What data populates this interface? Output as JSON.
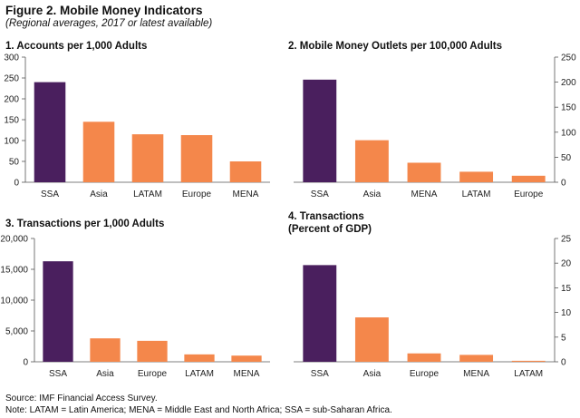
{
  "figure": {
    "title": "Figure 2. Mobile Money Indicators",
    "subtitle": "(Regional averages, 2017 or latest available)"
  },
  "colors": {
    "highlight": "#4a1f5e",
    "bar": "#f4874b",
    "axis": "#555555"
  },
  "chart_data": [
    {
      "type": "bar",
      "title": "1. Accounts per 1,000 Adults",
      "categories": [
        "SSA",
        "Asia",
        "LATAM",
        "Europe",
        "MENA"
      ],
      "values": [
        240,
        145,
        115,
        113,
        50
      ],
      "ylim": [
        0,
        300
      ],
      "yticks": [
        0,
        50,
        100,
        150,
        200,
        250,
        300
      ],
      "ytick_labels": [
        "0",
        "50",
        "100",
        "150",
        "200",
        "250",
        "300"
      ],
      "axis_side": "left",
      "grid": false
    },
    {
      "type": "bar",
      "title": "2. Mobile Money Outlets per 100,000 Adults",
      "categories": [
        "SSA",
        "Asia",
        "MENA",
        "LATAM",
        "Europe"
      ],
      "values": [
        205,
        84,
        39,
        21,
        13
      ],
      "ylim": [
        0,
        250
      ],
      "yticks": [
        0,
        50,
        100,
        150,
        200,
        250
      ],
      "ytick_labels": [
        "0",
        "50",
        "100",
        "150",
        "200",
        "250"
      ],
      "axis_side": "right",
      "grid": false
    },
    {
      "type": "bar",
      "title": "3. Transactions per 1,000 Adults",
      "categories": [
        "SSA",
        "Asia",
        "Europe",
        "LATAM",
        "MENA"
      ],
      "values": [
        16300,
        3800,
        3400,
        1200,
        1000
      ],
      "ylim": [
        0,
        20000
      ],
      "yticks": [
        0,
        5000,
        10000,
        15000,
        20000
      ],
      "ytick_labels": [
        "0",
        "5,000",
        "10,000",
        "15,000",
        "20,000"
      ],
      "axis_side": "left",
      "grid": false
    },
    {
      "type": "bar",
      "title": "4. Transactions",
      "title_line2": "(Percent of GDP)",
      "categories": [
        "SSA",
        "Asia",
        "Europe",
        "MENA",
        "LATAM"
      ],
      "values": [
        19.6,
        9,
        1.7,
        1.4,
        0.2
      ],
      "ylim": [
        0,
        25
      ],
      "yticks": [
        0,
        5,
        10,
        15,
        20,
        25
      ],
      "ytick_labels": [
        "0",
        "5",
        "10",
        "15",
        "20",
        "25"
      ],
      "axis_side": "right",
      "grid": false
    }
  ],
  "footer": {
    "source": "Source: IMF Financial Access Survey.",
    "note": "Note: LATAM = Latin America; MENA = Middle East and North Africa; SSA = sub-Saharan Africa."
  }
}
